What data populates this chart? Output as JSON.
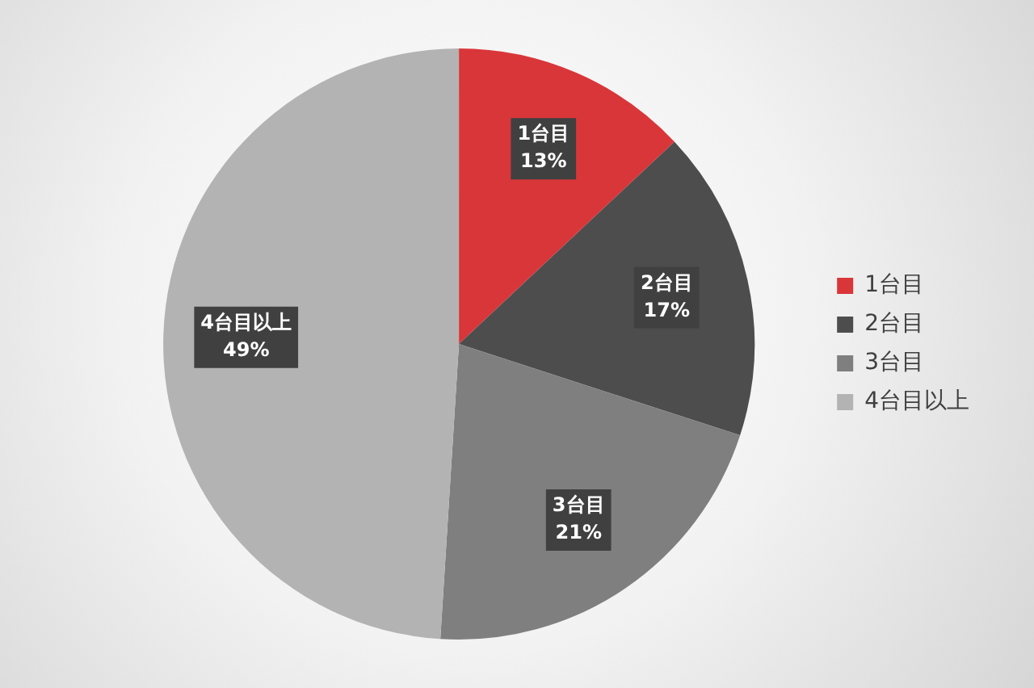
{
  "chart_data": {
    "type": "pie",
    "categories": [
      "1台目",
      "2台目",
      "3台目",
      "4台目以上"
    ],
    "values": [
      13,
      17,
      21,
      49
    ],
    "value_labels": [
      "13%",
      "17%",
      "21%",
      "49%"
    ],
    "colors": [
      "#d9363a",
      "#4d4d4d",
      "#7f7f7f",
      "#b3b3b3"
    ],
    "legend": "right"
  }
}
